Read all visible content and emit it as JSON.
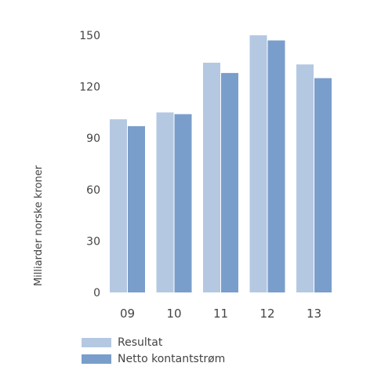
{
  "chart_data": {
    "type": "bar",
    "title": "",
    "xlabel": "",
    "ylabel": "Milliarder norske kroner",
    "categories": [
      "09",
      "10",
      "11",
      "12",
      "13"
    ],
    "yticks": [
      "0",
      "30",
      "60",
      "90",
      "120",
      "150"
    ],
    "ylim": [
      0,
      150
    ],
    "grid": false,
    "legend_position": "bottom-left",
    "series": [
      {
        "name": "Resultat",
        "color": "#b5c8e2",
        "values": [
          101,
          105,
          134,
          150,
          133
        ]
      },
      {
        "name": "Netto kontantstrøm",
        "color": "#7a9ecb",
        "values": [
          97,
          104,
          128,
          147,
          125
        ]
      }
    ]
  }
}
